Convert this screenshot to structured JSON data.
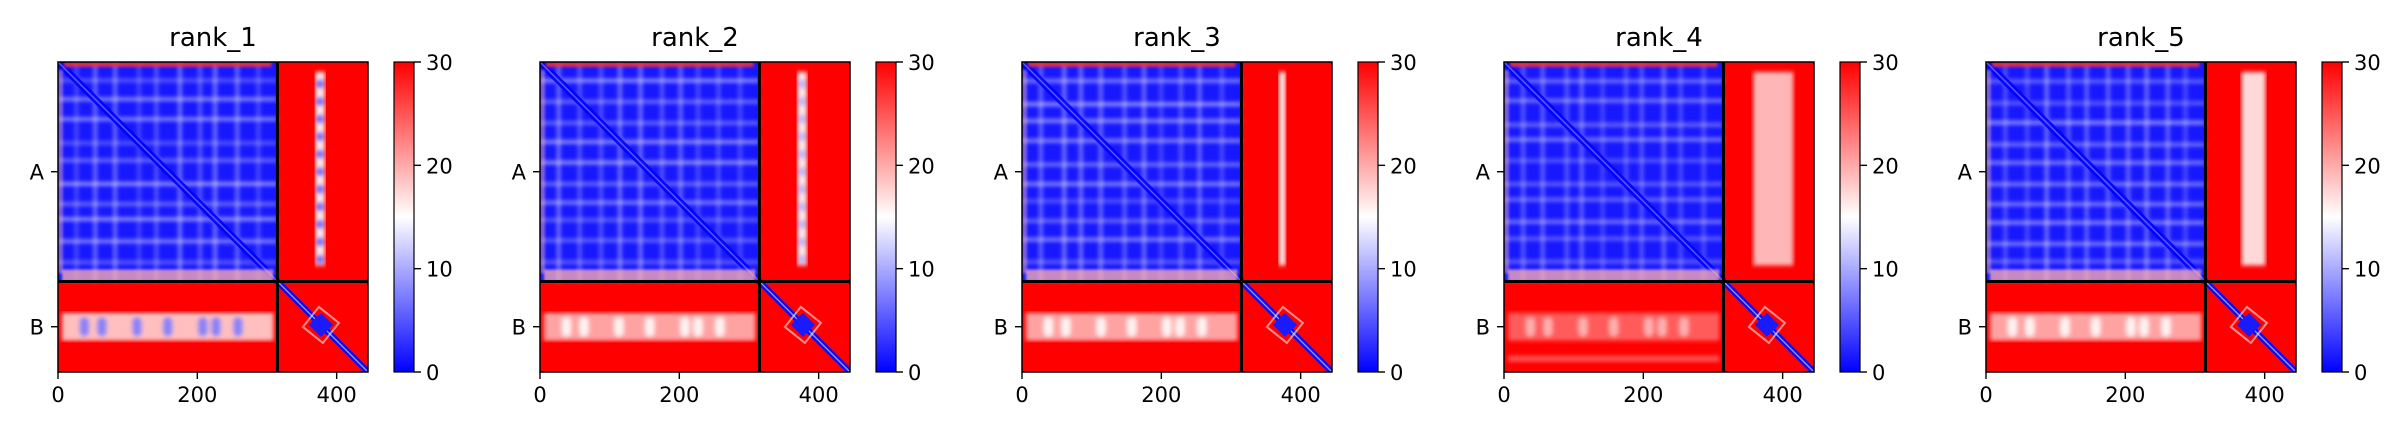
{
  "chart_data": {
    "type": "heatmap",
    "figure_kind": "predicted aligned error (PAE) matrices",
    "colormap": [
      "#0000ff",
      "#ffffff",
      "#ff0000"
    ],
    "clim": [
      0,
      30
    ],
    "colorbar_ticks": [
      "0",
      "10",
      "20",
      "30"
    ],
    "x_ticks": [
      "0",
      "200",
      "400"
    ],
    "x_tick_values": [
      0,
      200,
      400
    ],
    "xlim": [
      0,
      445
    ],
    "chain_labels": [
      "A",
      "B"
    ],
    "chain_boundary": 315,
    "total_length": 445,
    "panels": [
      {
        "title": "rank_1",
        "ab_stripe": "blue-dotted",
        "ba_band": "blue-spots"
      },
      {
        "title": "rank_2",
        "ab_stripe": "white-dotted",
        "ba_band": "white-spots"
      },
      {
        "title": "rank_3",
        "ab_stripe": "white-thin",
        "ba_band": "white-spots"
      },
      {
        "title": "rank_4",
        "ab_stripe": "pink-wide",
        "ba_band": "faint-spots"
      },
      {
        "title": "rank_5",
        "ab_stripe": "white-wide",
        "ba_band": "white-spots"
      }
    ]
  }
}
